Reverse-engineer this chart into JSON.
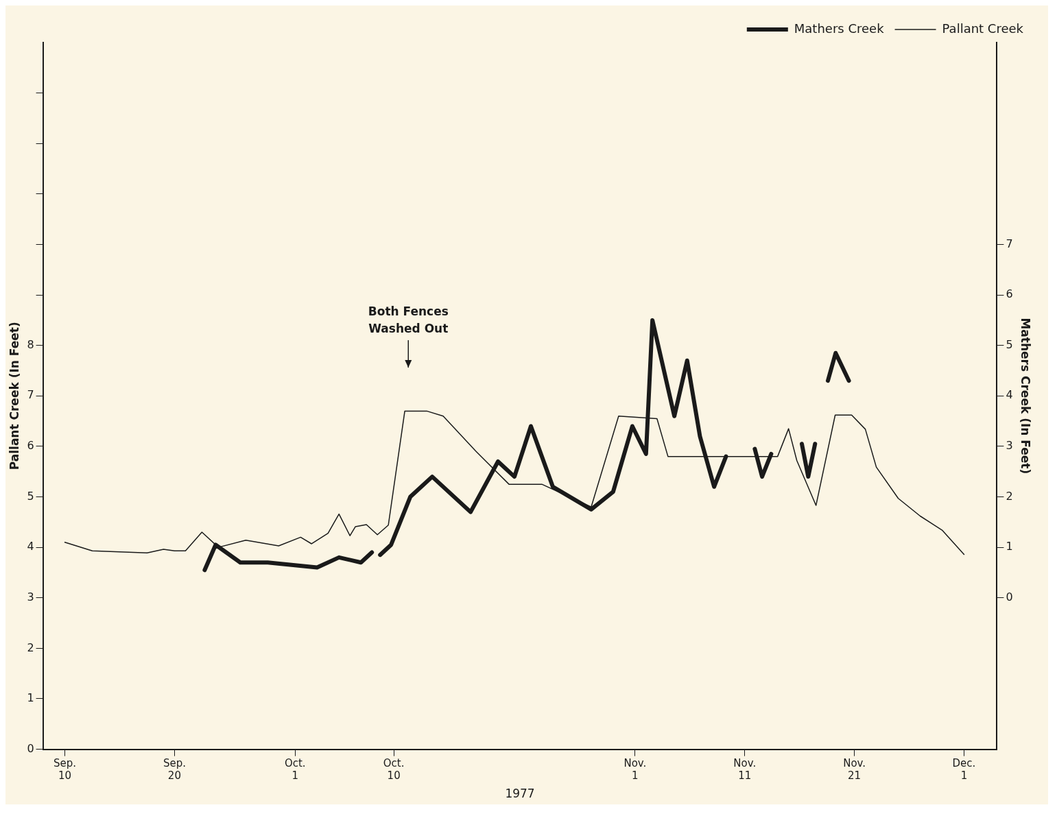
{
  "chart_data": {
    "type": "line",
    "xlabel": "1977",
    "ylabel": "Pallant Creek (In Feet)",
    "y2label": "Mathers Creek (In Feet)",
    "xlim": [
      "1977-09-08",
      "1977-12-04"
    ],
    "xticks": [
      {
        "value": "1977-09-10",
        "label": "Sep. 10"
      },
      {
        "value": "1977-09-20",
        "label": "Sep. 20"
      },
      {
        "value": "1977-10-01",
        "label": "Oct. 1"
      },
      {
        "value": "1977-10-10",
        "label": "Oct. 10"
      },
      {
        "value": "1977-11-01",
        "label": "Nov. 1"
      },
      {
        "value": "1977-11-11",
        "label": "Nov. 11"
      },
      {
        "value": "1977-11-21",
        "label": "Nov. 21"
      },
      {
        "value": "1977-12-01",
        "label": "Dec. 1"
      }
    ],
    "ylim": [
      0,
      14
    ],
    "yticks": [
      0,
      1,
      2,
      3,
      4,
      5,
      6,
      7,
      8,
      {
        "value": 9,
        "label": null
      },
      {
        "value": 10,
        "label": null
      },
      {
        "value": 11,
        "label": null
      },
      {
        "value": 12,
        "label": null
      },
      {
        "value": 13,
        "label": null
      }
    ],
    "y2lim": [
      -3,
      11
    ],
    "y2ticks": [
      0,
      1,
      2,
      3,
      4,
      5,
      6,
      7
    ],
    "grid": false,
    "legend": "top right",
    "marker": "none",
    "annotations": [
      "Both Fences Washed Out"
    ],
    "series": [
      {
        "name": "Mathers Creek",
        "color": "#1a1a1a",
        "axis": "y2",
        "x": [
          "1977-09-22T18:00",
          "1977-09-23T18:00",
          "1977-09-26",
          "1977-09-28T12:00",
          "1977-10-03",
          "1977-10-05",
          "1977-10-07",
          "1977-10-08",
          "1977-10-08T12:00",
          "1977-10-08T18:00",
          "1977-10-09T18:00",
          "1977-10-11T12:00",
          "1977-10-13T12:00",
          "1977-10-17",
          "1977-10-19T12:00",
          "1977-10-21",
          "1977-10-22T12:00",
          "1977-10-24T12:00",
          "1977-10-28",
          "1977-10-30",
          "1977-10-31T18:00",
          "1977-11-02",
          "1977-11-02T14:00",
          "1977-11-04T14:00",
          "1977-11-05T18:00",
          "1977-11-06T22:00",
          "1977-11-08T05:00",
          "1977-11-09T07:00",
          "1977-11-10",
          "1977-11-11T22:00",
          "1977-11-12T14:00",
          "1977-11-13T10:00",
          "1977-11-14T12:00",
          "1977-11-16T05:00",
          "1977-11-16T19:00",
          "1977-11-17T10:00",
          "1977-11-18",
          "1977-11-18T14:00",
          "1977-11-19T07:00",
          "1977-11-20T12:00"
        ],
        "values": [
          0.55,
          1.05,
          0.7,
          0.7,
          0.6,
          0.8,
          0.7,
          0.9,
          null,
          0.85,
          1.05,
          2.0,
          2.4,
          1.7,
          2.7,
          2.4,
          3.4,
          2.2,
          1.75,
          2.1,
          3.4,
          2.85,
          5.5,
          3.6,
          4.7,
          3.2,
          2.2,
          2.8,
          null,
          2.95,
          2.4,
          2.85,
          null,
          3.05,
          2.4,
          3.05,
          null,
          4.3,
          4.85,
          4.3
        ]
      },
      {
        "name": "Pallant Creek",
        "color": "#1a1a1a",
        "x": [
          "1977-09-10",
          "1977-09-12T12:00",
          "1977-09-17T12:00",
          "1977-09-19",
          "1977-09-20",
          "1977-09-21",
          "1977-09-22T12:00",
          "1977-09-24",
          "1977-09-26T12:00",
          "1977-09-29T12:00",
          "1977-10-01T12:00",
          "1977-10-02T12:00",
          "1977-10-04",
          "1977-10-05",
          "1977-10-06",
          "1977-10-06T12:00",
          "1977-10-07T12:00",
          "1977-10-08T12:00",
          "1977-10-09T12:00",
          "1977-10-11",
          "1977-10-13",
          "1977-10-14T12:00",
          "1977-10-17T12:00",
          "1977-10-20T12:00",
          "1977-10-23T12:00",
          "1977-10-28",
          "1977-10-30T12:00",
          "1977-11-03",
          "1977-11-04",
          "1977-11-14",
          "1977-11-15",
          "1977-11-15T18:00",
          "1977-11-17T12:00",
          "1977-11-19T06:00",
          "1977-11-20T18:00",
          "1977-11-22",
          "1977-11-23",
          "1977-11-25",
          "1977-11-27",
          "1977-11-29",
          "1977-12-01"
        ],
        "values": [
          4.1,
          3.93,
          3.89,
          3.96,
          3.93,
          3.93,
          4.3,
          4.0,
          4.14,
          4.03,
          4.2,
          4.07,
          4.28,
          4.66,
          4.23,
          4.41,
          4.45,
          4.25,
          4.44,
          6.7,
          6.7,
          6.6,
          5.9,
          5.25,
          5.25,
          4.8,
          6.6,
          6.55,
          5.8,
          5.8,
          6.35,
          5.72,
          4.83,
          6.62,
          6.62,
          6.34,
          5.59,
          4.97,
          4.62,
          4.34,
          3.86
        ]
      }
    ]
  }
}
